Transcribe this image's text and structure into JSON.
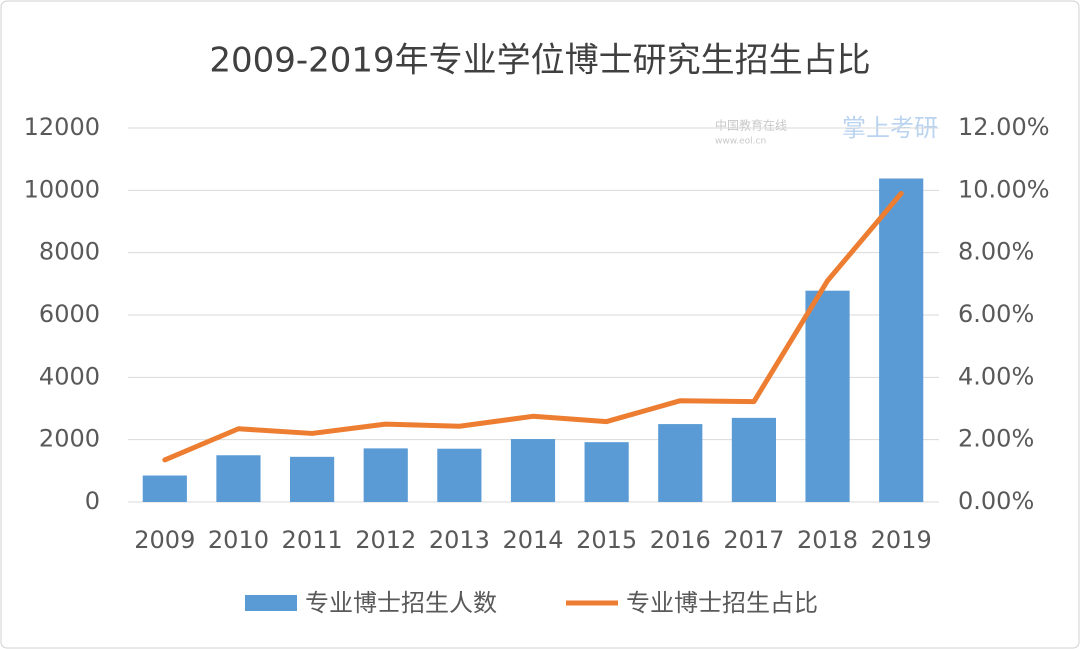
{
  "chart_data": {
    "type": "bar-line",
    "title": "2009-2019年专业学位博士研究生招生占比",
    "annotations": [
      "中国教育在线",
      "www.eol.cn",
      "掌上考研"
    ],
    "categories": [
      "2009",
      "2010",
      "2011",
      "2012",
      "2013",
      "2014",
      "2015",
      "2016",
      "2017",
      "2018",
      "2019"
    ],
    "series": [
      {
        "name": "专业博士招生人数",
        "type": "bar",
        "color": "#5b9bd5",
        "values": [
          850,
          1500,
          1450,
          1720,
          1710,
          2020,
          1920,
          2500,
          2700,
          6780,
          10380
        ]
      },
      {
        "name": "专业博士招生占比",
        "type": "line",
        "axis": "y2",
        "color": "#ed7d31",
        "values": [
          1.35,
          2.35,
          2.2,
          2.5,
          2.43,
          2.75,
          2.58,
          3.25,
          3.22,
          7.1,
          9.9
        ]
      }
    ],
    "ylim": [
      0,
      12000
    ],
    "yticks": [
      0,
      2000,
      4000,
      6000,
      8000,
      10000,
      12000
    ],
    "y2lim": [
      0,
      12
    ],
    "y2ticks": [
      {
        "value": 0,
        "label": "0.00%"
      },
      {
        "value": 2,
        "label": "2.00%"
      },
      {
        "value": 4,
        "label": "4.00%"
      },
      {
        "value": 6,
        "label": "6.00%"
      },
      {
        "value": 8,
        "label": "8.00%"
      },
      {
        "value": 10,
        "label": "10.00%"
      },
      {
        "value": 12,
        "label": "12.00%"
      }
    ],
    "grid": true,
    "legend": "bottom"
  }
}
